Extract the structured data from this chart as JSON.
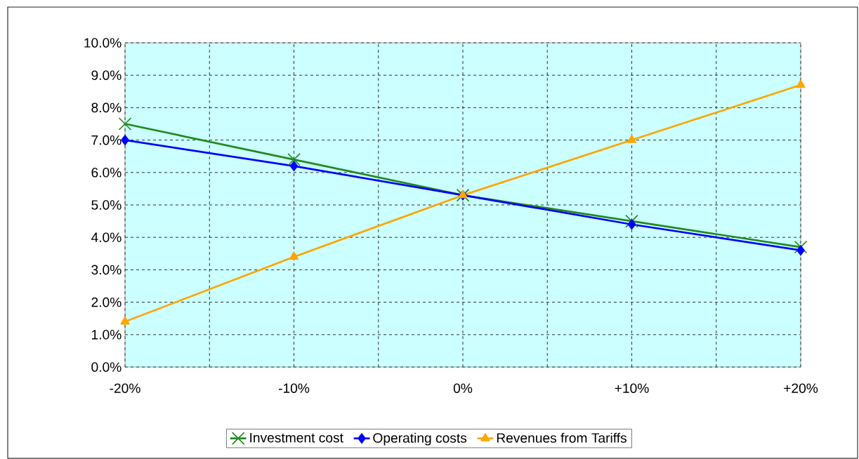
{
  "chart_data": {
    "type": "line",
    "x": [
      -20,
      -10,
      0,
      10,
      20
    ],
    "series": [
      {
        "name": "Investment cost",
        "color": "#1f8a1f",
        "marker": "cross",
        "values": [
          7.5,
          6.4,
          5.3,
          4.5,
          3.7
        ]
      },
      {
        "name": "Operating costs",
        "color": "#0000ff",
        "marker": "diamond",
        "values": [
          7.0,
          6.2,
          5.3,
          4.4,
          3.6
        ]
      },
      {
        "name": "Revenues from Tariffs",
        "color": "#ffa500",
        "marker": "triangle",
        "values": [
          1.4,
          3.4,
          5.3,
          7.0,
          8.7
        ]
      }
    ],
    "xlim": [
      -20,
      20
    ],
    "xticks": [
      {
        "value": -20,
        "label": "-20%"
      },
      {
        "value": -15,
        "label": null
      },
      {
        "value": -10,
        "label": "-10%"
      },
      {
        "value": -5,
        "label": null
      },
      {
        "value": 0,
        "label": "0%"
      },
      {
        "value": 5,
        "label": null
      },
      {
        "value": 10,
        "label": "+10%"
      },
      {
        "value": 15,
        "label": null
      },
      {
        "value": 20,
        "label": "+20%"
      }
    ],
    "ylim": [
      0,
      10
    ],
    "yticks": [
      {
        "value": 0,
        "label": "0.0%"
      },
      {
        "value": 1,
        "label": "1.0%"
      },
      {
        "value": 2,
        "label": "2.0%"
      },
      {
        "value": 3,
        "label": "3.0%"
      },
      {
        "value": 4,
        "label": "4.0%"
      },
      {
        "value": 5,
        "label": "5.0%"
      },
      {
        "value": 6,
        "label": "6.0%"
      },
      {
        "value": 7,
        "label": "7.0%"
      },
      {
        "value": 8,
        "label": "8.0%"
      },
      {
        "value": 9,
        "label": "9.0%"
      },
      {
        "value": 10,
        "label": "10.0%"
      }
    ],
    "grid": true,
    "legend": "bottom",
    "line_style": "solid"
  }
}
